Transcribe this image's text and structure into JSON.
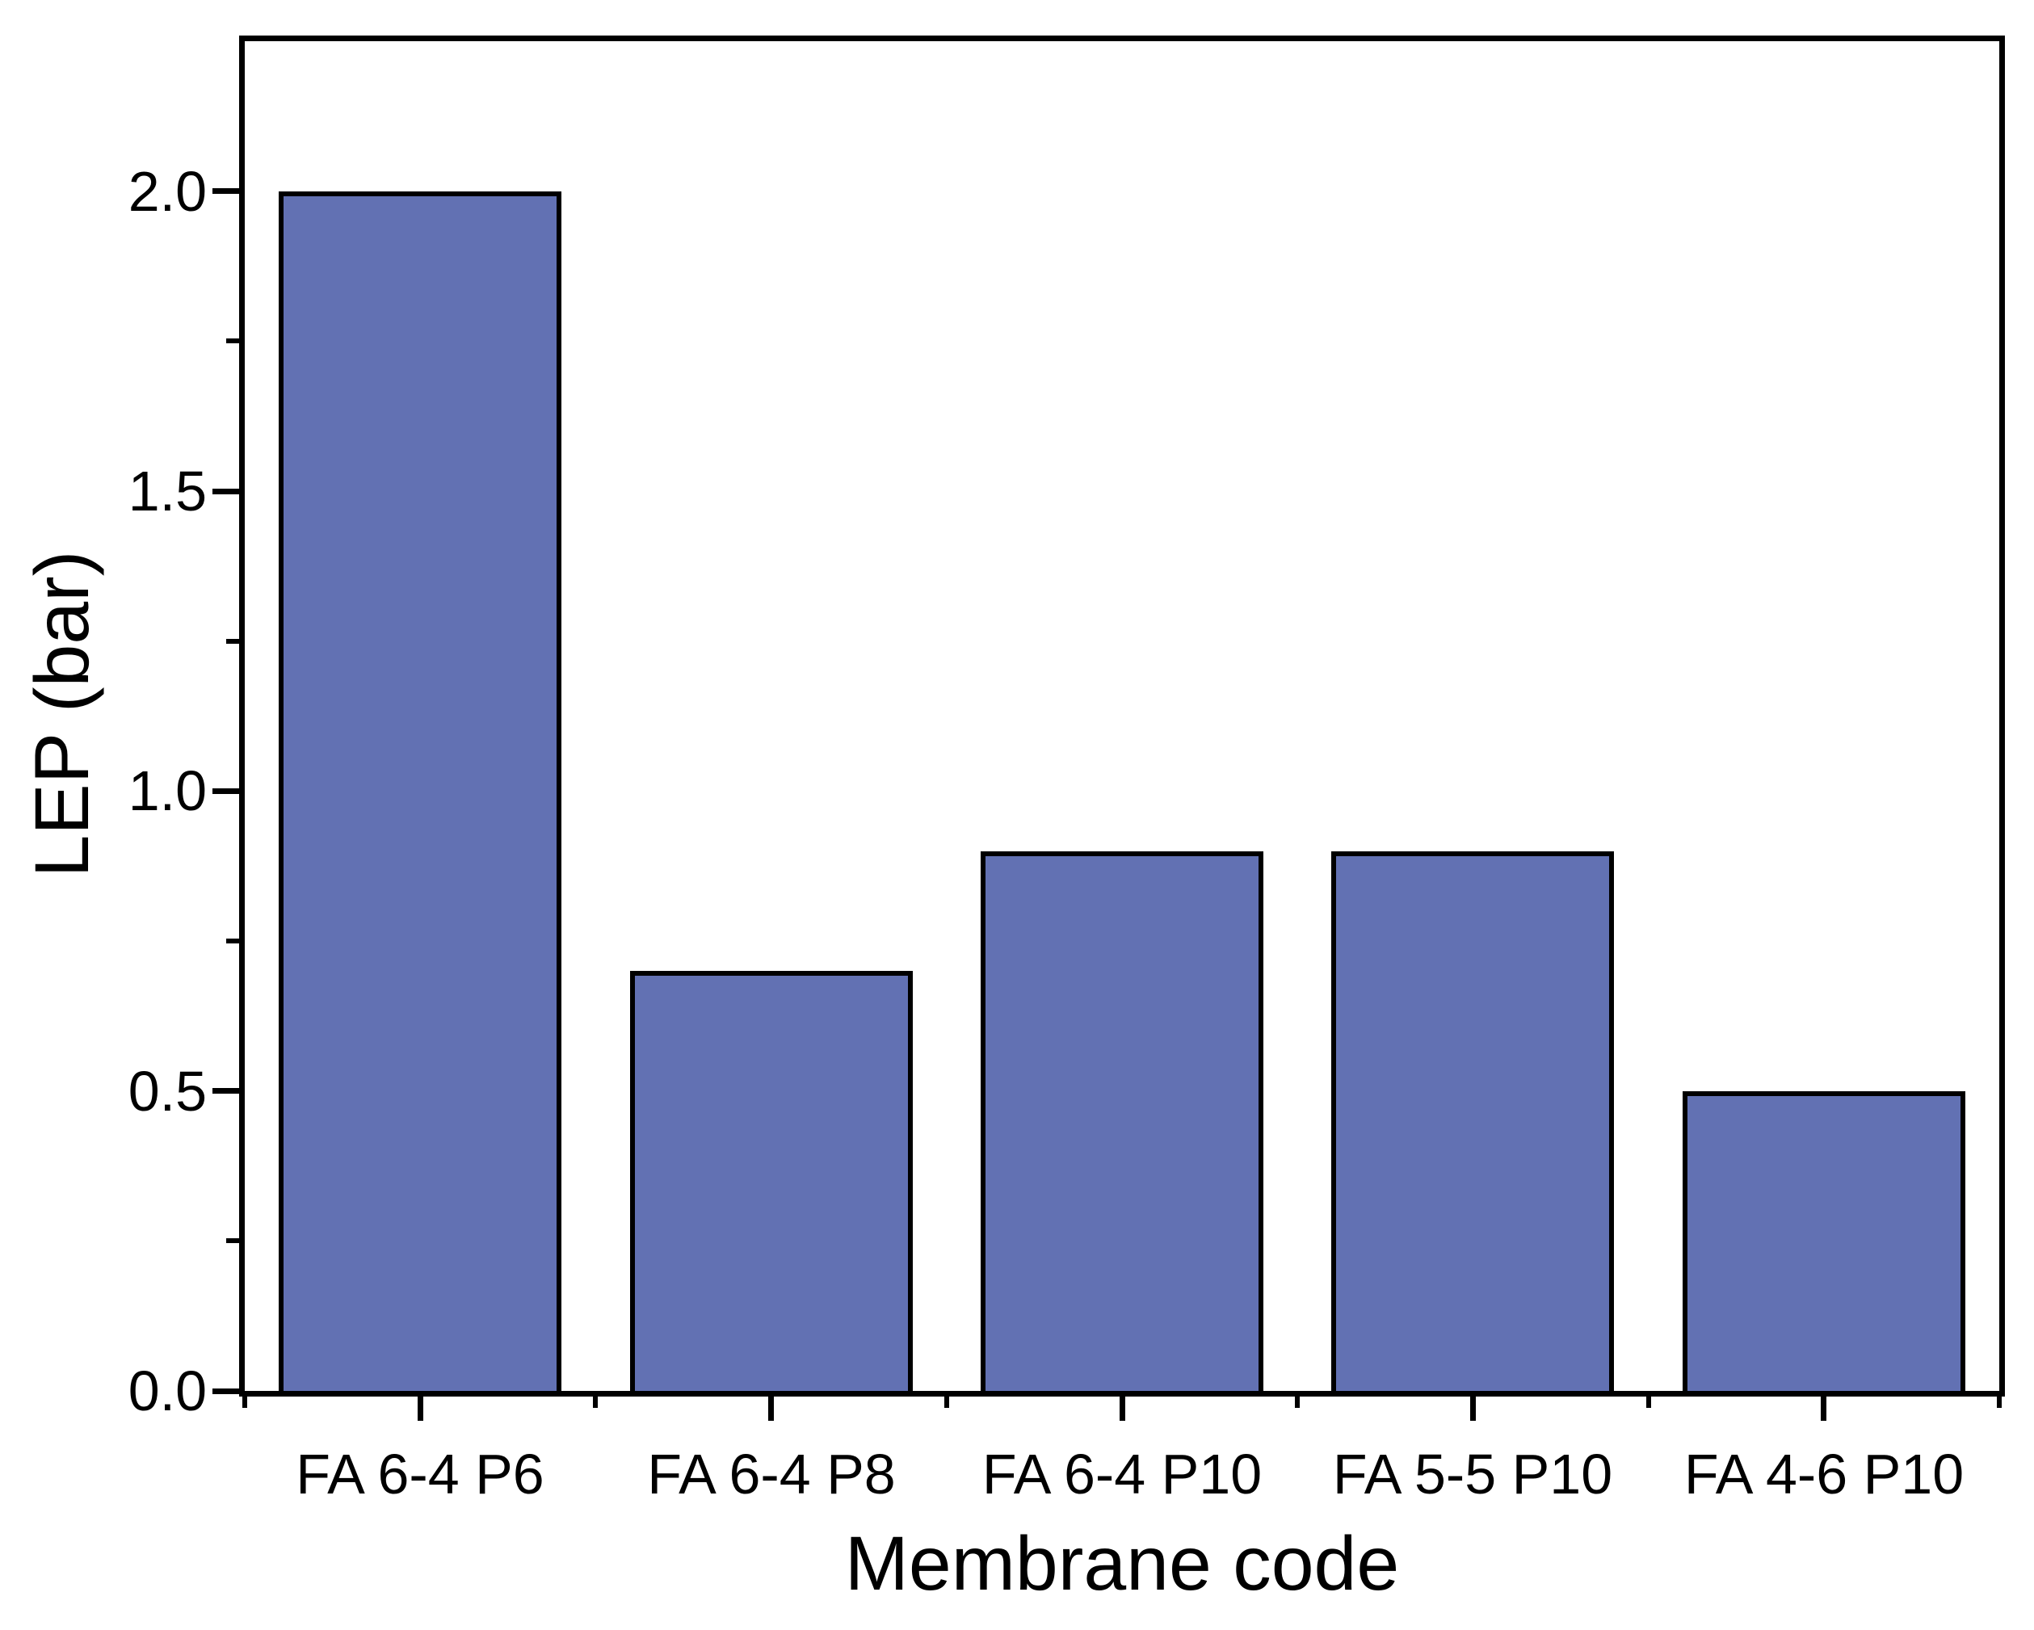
{
  "figure": {
    "background_color": "#ffffff",
    "axis_color": "#000000",
    "text_color": "#000000"
  },
  "chart_data": {
    "type": "bar",
    "title": "",
    "categories": [
      "FA 6-4 P6",
      "FA 6-4 P8",
      "FA 6-4 P10",
      "FA 5-5 P10",
      "FA 4-6 P10"
    ],
    "values": [
      2.0,
      0.7,
      0.9,
      0.9,
      0.5
    ],
    "xlabel": "Membrane code",
    "ylabel": "LEP (bar)",
    "ylim": [
      0,
      2.25
    ],
    "y_major_ticks": [
      0.0,
      0.5,
      1.0,
      1.5,
      2.0
    ],
    "y_major_tick_labels": [
      "0.0",
      "0.5",
      "1.0",
      "1.5",
      "2.0"
    ],
    "y_minor_ticks": [
      0.25,
      0.75,
      1.25,
      1.75
    ],
    "bar_color": "#6271b3",
    "bar_border_color": "#000000",
    "grid": false,
    "legend": null
  }
}
